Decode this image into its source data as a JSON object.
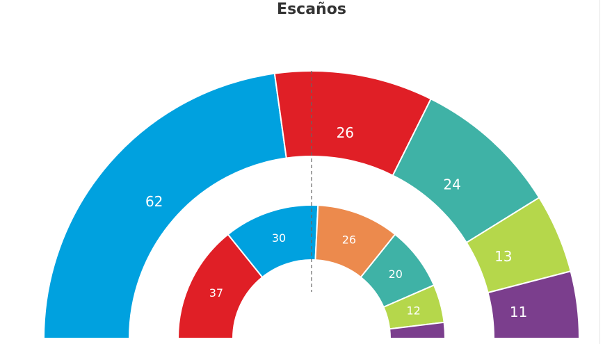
{
  "header": {
    "title": "Escaños"
  },
  "chart_data": [
    {
      "type": "pie",
      "title": "Escaños",
      "ring": "outer",
      "slices": [
        {
          "value": 62,
          "label": "62",
          "color": "#00a1df"
        },
        {
          "value": 26,
          "label": "26",
          "color": "#e01f26"
        },
        {
          "value": 24,
          "label": "24",
          "color": "#3fb2a6"
        },
        {
          "value": 13,
          "label": "13",
          "color": "#b5d74b"
        },
        {
          "value": 11,
          "label": "11",
          "color": "#7b3e8d"
        }
      ]
    },
    {
      "type": "pie",
      "ring": "inner",
      "slices": [
        {
          "value": 37,
          "label": "37",
          "color": "#e01f26"
        },
        {
          "value": 30,
          "label": "30",
          "color": "#00a1df"
        },
        {
          "value": 26,
          "label": "26",
          "color": "#ec8a4d"
        },
        {
          "value": 20,
          "label": "20",
          "color": "#3fb2a6"
        },
        {
          "value": 12,
          "label": "12",
          "color": "#b5d74b"
        },
        {
          "value": 5,
          "label": "",
          "color": "#7b3e8d"
        }
      ]
    }
  ]
}
